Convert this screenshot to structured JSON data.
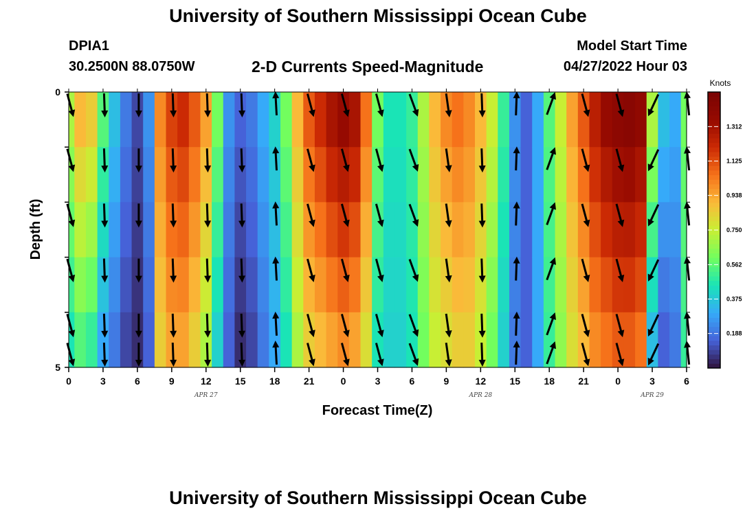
{
  "header": {
    "title": "University of Southern Mississippi Ocean Cube",
    "station": "DPIA1",
    "coords": "30.2500N  88.0750W",
    "subtitle": "2-D Currents Speed-Magnitude",
    "model_start_label": "Model Start Time",
    "model_start_value": "04/27/2022 Hour 03"
  },
  "footer": {
    "title": "University of Southern Mississippi Ocean Cube"
  },
  "chart_data": {
    "type": "heatmap",
    "title": "2-D Currents Speed-Magnitude",
    "xlabel": "Forecast Time(Z)",
    "ylabel": "Depth (ft)",
    "x_tick_labels": [
      "0",
      "3",
      "6",
      "9",
      "12",
      "15",
      "18",
      "21",
      "0",
      "3",
      "6",
      "9",
      "12",
      "15",
      "18",
      "21",
      "0",
      "3",
      "6"
    ],
    "x_date_labels": [
      {
        "label": "APR 27",
        "tick_index": 4
      },
      {
        "label": "APR 28",
        "tick_index": 12
      },
      {
        "label": "APR 29",
        "tick_index": 17
      }
    ],
    "y_range": [
      0,
      5
    ],
    "y_tick_labels": [
      "0",
      "5"
    ],
    "depth_rows": [
      0.5,
      1.5,
      2.5,
      3.5,
      4.5
    ],
    "colorbar": {
      "title": "Knots",
      "range": [
        0,
        1.5
      ],
      "tick_labels": [
        "1.312",
        "1.125",
        "0.938",
        "0.750",
        "0.562",
        "0.375",
        "0.188"
      ],
      "tick_values": [
        1.312,
        1.125,
        0.938,
        0.75,
        0.562,
        0.375,
        0.188
      ]
    },
    "speed_profile": {
      "hours": [
        0,
        1,
        2,
        3,
        4,
        5,
        6,
        7,
        8,
        9,
        10,
        11,
        12,
        13,
        14,
        15,
        16,
        17,
        18,
        19,
        20,
        21,
        22,
        23,
        24,
        25,
        26,
        27,
        28,
        29,
        30,
        31,
        32,
        33,
        34,
        35,
        36,
        37,
        38,
        39,
        40,
        41,
        42,
        43,
        44,
        45,
        46,
        47,
        48,
        49,
        50,
        51,
        52,
        53,
        54
      ],
      "surface_knots": [
        0.7,
        0.9,
        0.85,
        0.55,
        0.35,
        0.2,
        0.1,
        0.25,
        1.0,
        1.15,
        1.2,
        1.1,
        0.95,
        0.6,
        0.25,
        0.15,
        0.2,
        0.3,
        0.4,
        0.6,
        0.9,
        1.1,
        1.2,
        1.3,
        1.35,
        1.3,
        1.05,
        0.6,
        0.45,
        0.45,
        0.5,
        0.7,
        0.9,
        1.0,
        1.05,
        1.0,
        0.9,
        0.75,
        0.5,
        0.25,
        0.15,
        0.3,
        0.55,
        0.75,
        0.95,
        1.1,
        1.25,
        1.35,
        1.4,
        1.42,
        1.38,
        0.7,
        0.35,
        0.3,
        0.6
      ],
      "bottom_knots": [
        0.45,
        0.55,
        0.5,
        0.3,
        0.2,
        0.1,
        0.05,
        0.15,
        0.85,
        0.95,
        0.95,
        0.85,
        0.7,
        0.4,
        0.15,
        0.05,
        0.1,
        0.2,
        0.3,
        0.45,
        0.7,
        0.85,
        0.9,
        0.95,
        1.0,
        0.95,
        0.8,
        0.45,
        0.4,
        0.4,
        0.45,
        0.6,
        0.75,
        0.8,
        0.85,
        0.85,
        0.75,
        0.6,
        0.4,
        0.2,
        0.15,
        0.3,
        0.5,
        0.65,
        0.8,
        0.9,
        1.0,
        1.05,
        1.1,
        1.1,
        1.05,
        0.35,
        0.15,
        0.2,
        0.5
      ]
    },
    "arrow_hours": [
      0,
      3,
      6,
      9,
      12,
      15,
      18,
      21,
      24,
      27,
      30,
      33,
      36,
      39,
      42,
      45,
      48,
      51,
      54
    ],
    "arrow_angles_deg": [
      165,
      178,
      180,
      178,
      178,
      178,
      -3,
      165,
      165,
      165,
      160,
      172,
      178,
      2,
      20,
      165,
      165,
      -155,
      -6
    ]
  }
}
